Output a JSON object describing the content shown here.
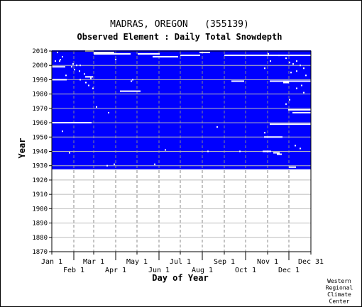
{
  "chart_data": {
    "type": "heatmap",
    "title": "MADRAS, OREGON   (355139)",
    "subtitle": "Observed Element : Daily Total Snowdepth",
    "xlabel": "Day of Year",
    "ylabel": "Year",
    "credit": [
      "Western",
      "Regional",
      "Climate",
      "Center"
    ],
    "x_ticks_top": [
      "Jan 1",
      "Mar 1",
      "May 1",
      "Jul 1",
      "Sep 1",
      "Nov 1",
      "Dec 31"
    ],
    "x_ticks_bottom": [
      "Feb 1",
      "Apr 1",
      "Jun 1",
      "Aug 1",
      "Oct 1",
      "Dec 1"
    ],
    "month_start_days": [
      1,
      32,
      60,
      91,
      121,
      152,
      182,
      213,
      244,
      274,
      305,
      335,
      366
    ],
    "y_ticks": [
      2010,
      2000,
      1990,
      1980,
      1970,
      1960,
      1950,
      1940,
      1930,
      1920,
      1910,
      1900,
      1890,
      1880,
      1870
    ],
    "xlim": [
      1,
      366
    ],
    "ylim": [
      1870,
      2010
    ],
    "data_period": [
      1928,
      2010
    ],
    "colors": {
      "data": "#0000ff",
      "missing": "#ffffff",
      "grid": "#888888"
    },
    "missing_segments": [
      {
        "year": 2010,
        "start": 48,
        "end": 60
      },
      {
        "year": 2009,
        "start": 60,
        "end": 89
      },
      {
        "year": 2009,
        "start": 209,
        "end": 224
      },
      {
        "year": 2008,
        "start": 60,
        "end": 112
      },
      {
        "year": 2008,
        "start": 122,
        "end": 153
      },
      {
        "year": 2007,
        "start": 182,
        "end": 210
      },
      {
        "year": 2007,
        "start": 244,
        "end": 366
      },
      {
        "year": 2006,
        "start": 143,
        "end": 179
      },
      {
        "year": 1999,
        "start": 1,
        "end": 20
      },
      {
        "year": 1992,
        "start": 48,
        "end": 59
      },
      {
        "year": 1990,
        "start": 1,
        "end": 22
      },
      {
        "year": 1989,
        "start": 308,
        "end": 366
      },
      {
        "year": 1989,
        "start": 254,
        "end": 272
      },
      {
        "year": 1988,
        "start": 327,
        "end": 335
      },
      {
        "year": 1982,
        "start": 97,
        "end": 126
      },
      {
        "year": 1969,
        "start": 334,
        "end": 366
      },
      {
        "year": 1967,
        "start": 340,
        "end": 366
      },
      {
        "year": 1960,
        "start": 1,
        "end": 57
      },
      {
        "year": 1959,
        "start": 308,
        "end": 366
      },
      {
        "year": 1950,
        "start": 300,
        "end": 326
      },
      {
        "year": 1940,
        "start": 298,
        "end": 310
      },
      {
        "year": 1939,
        "start": 313,
        "end": 322
      },
      {
        "year": 1938,
        "start": 318,
        "end": 325
      },
      {
        "year": 1929,
        "start": 335,
        "end": 345
      }
    ],
    "missing_points": [
      {
        "year": 2009,
        "day": 8
      },
      {
        "year": 2006,
        "day": 15
      },
      {
        "year": 2004,
        "day": 12
      },
      {
        "year": 2003,
        "day": 5
      },
      {
        "year": 2003,
        "day": 11
      },
      {
        "year": 2001,
        "day": 30
      },
      {
        "year": 2000,
        "day": 35
      },
      {
        "year": 2000,
        "day": 40
      },
      {
        "year": 1999,
        "day": 28
      },
      {
        "year": 1997,
        "day": 32
      },
      {
        "year": 1996,
        "day": 39
      },
      {
        "year": 1994,
        "day": 46
      },
      {
        "year": 1993,
        "day": 20
      },
      {
        "year": 1991,
        "day": 55
      },
      {
        "year": 1990,
        "day": 40
      },
      {
        "year": 1988,
        "day": 48
      },
      {
        "year": 1986,
        "day": 52
      },
      {
        "year": 1984,
        "day": 58
      },
      {
        "year": 1971,
        "day": 63
      },
      {
        "year": 1967,
        "day": 80
      },
      {
        "year": 1954,
        "day": 15
      },
      {
        "year": 1939,
        "day": 25
      },
      {
        "year": 1930,
        "day": 78
      },
      {
        "year": 1931,
        "day": 88
      },
      {
        "year": 1931,
        "day": 145
      },
      {
        "year": 1989,
        "day": 112
      },
      {
        "year": 1990,
        "day": 114
      },
      {
        "year": 2004,
        "day": 90
      },
      {
        "year": 1957,
        "day": 233
      },
      {
        "year": 1940,
        "day": 265
      },
      {
        "year": 1941,
        "day": 160
      },
      {
        "year": 1940,
        "day": 220
      },
      {
        "year": 2005,
        "day": 330
      },
      {
        "year": 2003,
        "day": 345
      },
      {
        "year": 2002,
        "day": 335
      },
      {
        "year": 2001,
        "day": 340
      },
      {
        "year": 2000,
        "day": 350
      },
      {
        "year": 1998,
        "day": 355
      },
      {
        "year": 1996,
        "day": 345
      },
      {
        "year": 1995,
        "day": 337
      },
      {
        "year": 1993,
        "day": 358
      },
      {
        "year": 1986,
        "day": 352
      },
      {
        "year": 1984,
        "day": 345
      },
      {
        "year": 1981,
        "day": 355
      },
      {
        "year": 1976,
        "day": 335
      },
      {
        "year": 1973,
        "day": 330
      },
      {
        "year": 1953,
        "day": 300
      },
      {
        "year": 1944,
        "day": 343
      },
      {
        "year": 1942,
        "day": 350
      },
      {
        "year": 2008,
        "day": 305
      },
      {
        "year": 2007,
        "day": 320
      },
      {
        "year": 2003,
        "day": 308
      },
      {
        "year": 1998,
        "day": 300
      }
    ]
  }
}
